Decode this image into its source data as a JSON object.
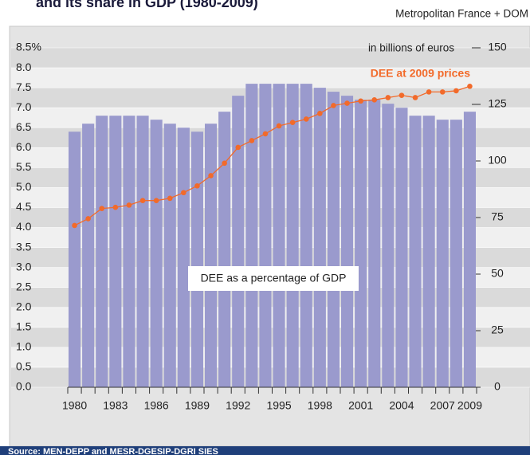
{
  "chart_data": {
    "type": "bar",
    "title": "and its share in GDP (1980-2009)",
    "annotations": [
      "Metropolitan France + DOM"
    ],
    "y2label": "in billions of euros",
    "source": "Source: MEN-DEPP and MESR-DGESIP-DGRI SIES",
    "categories": [
      "1980",
      null,
      null,
      "1983",
      null,
      null,
      "1986",
      null,
      null,
      "1989",
      null,
      null,
      "1992",
      null,
      null,
      "1995",
      null,
      null,
      "1998",
      null,
      null,
      "2001",
      null,
      null,
      "2004",
      null,
      null,
      "2007",
      null,
      "2009"
    ],
    "series": [
      {
        "name": "DEE as a percentage of GDP",
        "color": "#9a9acd",
        "values": [
          6.4,
          6.6,
          6.8,
          6.8,
          6.8,
          6.8,
          6.7,
          6.6,
          6.5,
          6.4,
          6.6,
          6.9,
          7.3,
          7.6,
          7.6,
          7.6,
          7.6,
          7.6,
          7.5,
          7.4,
          7.3,
          7.2,
          7.2,
          7.1,
          7.0,
          6.8,
          6.8,
          6.7,
          6.7,
          6.9
        ]
      },
      {
        "name": "DEE at 2009 prices",
        "color": "#f26a2a",
        "type": "line",
        "axis": "y2",
        "values": [
          71.5,
          74.5,
          79,
          79.5,
          80.5,
          82.5,
          82.5,
          83.5,
          86,
          89,
          93.5,
          99,
          106,
          109,
          112,
          115.5,
          117,
          118.5,
          121,
          124.5,
          125.5,
          126.5,
          127,
          128,
          129,
          128,
          130.5,
          130.5,
          131,
          133
        ]
      }
    ],
    "ylim": [
      0,
      8.5
    ],
    "yticks": [
      {
        "value": 0,
        "label": "0.0"
      },
      0.5,
      {
        "value": 1,
        "label": "1.0"
      },
      1.5,
      {
        "value": 2,
        "label": "2.0"
      },
      2.5,
      {
        "value": 3,
        "label": "3.0"
      },
      3.5,
      {
        "value": 4,
        "label": "4.0"
      },
      4.5,
      {
        "value": 5,
        "label": "5.0"
      },
      5.5,
      {
        "value": 6,
        "label": "6.0"
      },
      6.5,
      {
        "value": 7,
        "label": "7.0"
      },
      7.5,
      {
        "value": 8,
        "label": "8.0"
      },
      {
        "value": 8.5,
        "label": "8.5%"
      }
    ],
    "y2lim": [
      0,
      150
    ],
    "y2ticks": [
      0,
      25,
      50,
      75,
      100,
      125,
      150
    ],
    "grid": true
  }
}
